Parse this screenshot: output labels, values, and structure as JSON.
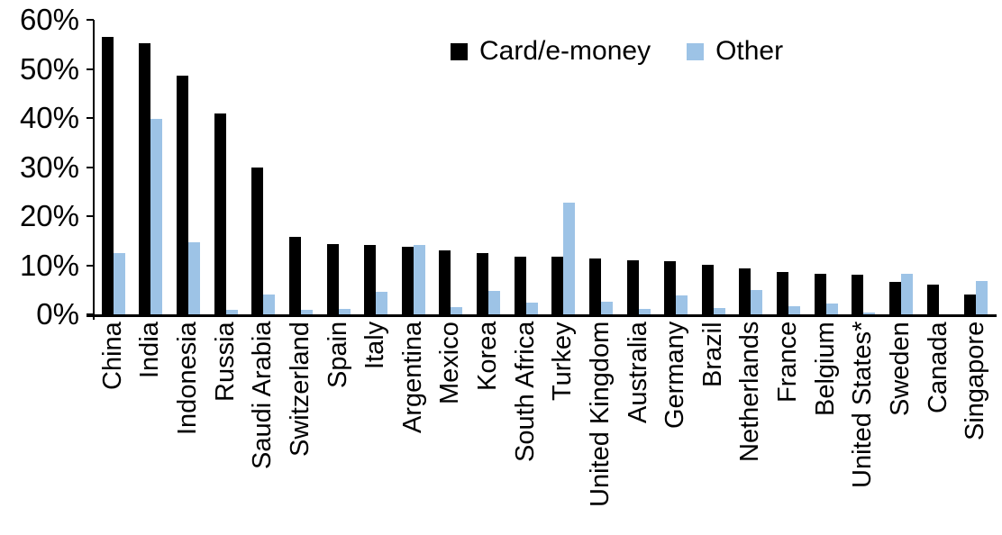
{
  "chart_data": {
    "type": "bar",
    "title": "",
    "xlabel": "",
    "ylabel": "",
    "ylim": [
      0,
      60
    ],
    "ytick_step": 10,
    "ytick_labels": [
      "0%",
      "10%",
      "20%",
      "30%",
      "40%",
      "50%",
      "60%"
    ],
    "grid": false,
    "legend_position": "top-center",
    "background_color": "#FFFFFF",
    "axis_color": "#000000",
    "categories": [
      "China",
      "India",
      "Indonesia",
      "Russia",
      "Saudi Arabia",
      "Switzerland",
      "Spain",
      "Italy",
      "Argentina",
      "Mexico",
      "Korea",
      "South Africa",
      "Turkey",
      "United Kingdom",
      "Australia",
      "Germany",
      "Brazil",
      "Netherlands",
      "France",
      "Belgium",
      "United States*",
      "Sweden",
      "Canada",
      "Singapore"
    ],
    "series": [
      {
        "name": "Card/e-money",
        "color": "#000000",
        "values": [
          56.5,
          55.2,
          48.6,
          40.9,
          30.0,
          15.8,
          14.3,
          14.2,
          13.7,
          13.0,
          12.4,
          11.8,
          11.8,
          11.3,
          11.0,
          10.8,
          10.1,
          9.4,
          8.7,
          8.2,
          8.0,
          6.7,
          6.1,
          4.0
        ]
      },
      {
        "name": "Other",
        "color": "#9DC3E6",
        "values": [
          12.5,
          39.9,
          14.6,
          1.0,
          4.0,
          0.9,
          1.2,
          4.6,
          14.1,
          1.5,
          4.7,
          2.4,
          22.8,
          2.5,
          1.1,
          3.9,
          1.3,
          4.9,
          1.7,
          2.2,
          0.4,
          8.3,
          0.0,
          6.8
        ]
      }
    ]
  }
}
